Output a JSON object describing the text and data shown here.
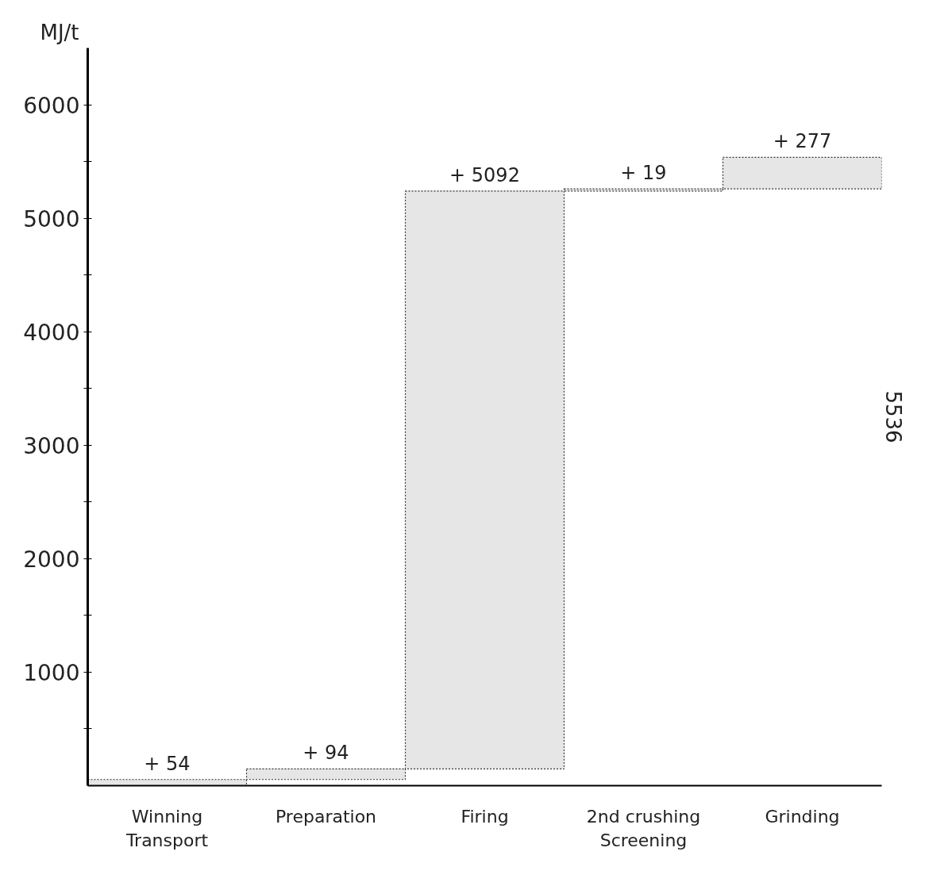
{
  "chart_data": {
    "type": "bar",
    "ylabel": "MJ/t",
    "categories": [
      "Winning\nTransport",
      "Preparation",
      "Firing",
      "2nd crushing\nScreening",
      "Grinding"
    ],
    "values": [
      54,
      94,
      5092,
      19,
      277
    ],
    "base": [
      0,
      54,
      148,
      5240,
      5259
    ],
    "value_labels": [
      "+ 54",
      "+ 94",
      "+ 5092",
      "+ 19",
      "+ 277"
    ],
    "color": "#e6e6e6",
    "ylim": [
      0,
      6500
    ],
    "yticks": [
      {
        "value": 500,
        "label": null
      },
      1000,
      {
        "value": 1500,
        "label": null
      },
      2000,
      {
        "value": 2500,
        "label": null
      },
      3000,
      {
        "value": 3500,
        "label": null
      },
      4000,
      {
        "value": 4500,
        "label": null
      },
      5000,
      {
        "value": 5500,
        "label": null
      },
      6000
    ],
    "annotations": [
      "5536"
    ],
    "grid": false
  }
}
